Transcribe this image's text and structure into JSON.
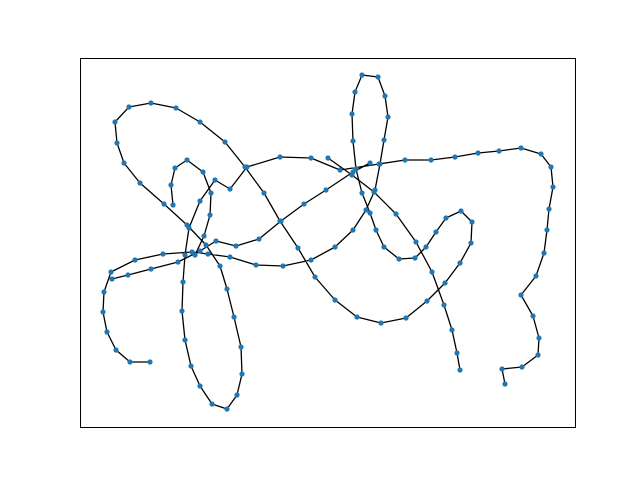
{
  "chart_data": {
    "type": "line",
    "title": "",
    "xlabel": "",
    "ylabel": "",
    "xticks": [],
    "yticks": [],
    "grid": false,
    "legend": false,
    "series": [
      {
        "line_color": "#000000",
        "marker": "circle",
        "marker_color": "#1f77b4",
        "points": [
          [
            150,
            362
          ],
          [
            130,
            362
          ],
          [
            116,
            350
          ],
          [
            107,
            332
          ],
          [
            103,
            312
          ],
          [
            104,
            292
          ],
          [
            111,
            272
          ],
          [
            135,
            260
          ],
          [
            163,
            254
          ],
          [
            192,
            252
          ],
          [
            208,
            254
          ],
          [
            230,
            257
          ],
          [
            256,
            265
          ],
          [
            283,
            266
          ],
          [
            311,
            260
          ],
          [
            335,
            247
          ],
          [
            353,
            230
          ],
          [
            366,
            210
          ],
          [
            375,
            190
          ],
          [
            380,
            164
          ],
          [
            384,
            140
          ],
          [
            388,
            117
          ],
          [
            385,
            96
          ],
          [
            378,
            77
          ],
          [
            362,
            75
          ],
          [
            355,
            92
          ],
          [
            352,
            114
          ],
          [
            353,
            141
          ],
          [
            356,
            169
          ],
          [
            362,
            193
          ],
          [
            370,
            213
          ],
          [
            376,
            230
          ],
          [
            384,
            247
          ],
          [
            399,
            259
          ],
          [
            415,
            258
          ],
          [
            426,
            247
          ],
          [
            436,
            232
          ],
          [
            446,
            218
          ],
          [
            461,
            211
          ],
          [
            472,
            222
          ],
          [
            471,
            243
          ],
          [
            460,
            263
          ],
          [
            445,
            283
          ],
          [
            427,
            301
          ],
          [
            406,
            318
          ],
          [
            381,
            323
          ],
          [
            357,
            317
          ],
          [
            335,
            300
          ],
          [
            315,
            277
          ],
          [
            298,
            248
          ],
          [
            280,
            221
          ],
          [
            264,
            193
          ],
          [
            245,
            167
          ],
          [
            225,
            142
          ],
          [
            200,
            122
          ],
          [
            176,
            108
          ],
          [
            151,
            103
          ],
          [
            129,
            107
          ],
          [
            115,
            122
          ],
          [
            117,
            143
          ],
          [
            124,
            163
          ],
          [
            140,
            183
          ],
          [
            164,
            204
          ],
          [
            187,
            225
          ],
          [
            206,
            245
          ],
          [
            220,
            266
          ],
          [
            227,
            289
          ],
          [
            234,
            317
          ],
          [
            241,
            347
          ],
          [
            242,
            374
          ],
          [
            237,
            395
          ],
          [
            227,
            409
          ],
          [
            212,
            404
          ],
          [
            200,
            386
          ],
          [
            191,
            366
          ],
          [
            185,
            340
          ],
          [
            182,
            311
          ],
          [
            183,
            282
          ],
          [
            185,
            255
          ],
          [
            189,
            228
          ],
          [
            200,
            201
          ],
          [
            215,
            180
          ],
          [
            230,
            189
          ],
          [
            247,
            167
          ],
          [
            280,
            157
          ],
          [
            311,
            158
          ],
          [
            340,
            170
          ],
          [
            379,
            164
          ],
          [
            405,
            160
          ],
          [
            431,
            160
          ],
          [
            455,
            157
          ],
          [
            478,
            153
          ],
          [
            499,
            151
          ],
          [
            521,
            148
          ],
          [
            541,
            154
          ],
          [
            551,
            167
          ],
          [
            553,
            187
          ],
          [
            549,
            209
          ],
          [
            547,
            230
          ],
          [
            544,
            253
          ],
          [
            536,
            276
          ],
          [
            521,
            295
          ],
          [
            533,
            316
          ],
          [
            539,
            338
          ],
          [
            538,
            355
          ],
          [
            522,
            367
          ],
          [
            502,
            369
          ],
          [
            505,
            384
          ]
        ]
      },
      {
        "line_color": "#000000",
        "marker": "circle",
        "marker_color": "#1f77b4",
        "points": [
          [
            460,
            370
          ],
          [
            457,
            353
          ],
          [
            452,
            330
          ],
          [
            444,
            305
          ],
          [
            432,
            272
          ],
          [
            416,
            242
          ],
          [
            396,
            214
          ],
          [
            374,
            192
          ],
          [
            352,
            175
          ],
          [
            328,
            158
          ]
        ]
      },
      {
        "line_color": "#000000",
        "marker": "circle",
        "marker_color": "#1f77b4",
        "points": [
          [
            112,
            279
          ],
          [
            128,
            275
          ],
          [
            151,
            269
          ],
          [
            178,
            262
          ],
          [
            200,
            251
          ],
          [
            216,
            241
          ],
          [
            236,
            246
          ],
          [
            259,
            239
          ],
          [
            281,
            221
          ],
          [
            304,
            204
          ],
          [
            326,
            190
          ],
          [
            353,
            172
          ],
          [
            370,
            163
          ]
        ]
      },
      {
        "line_color": "#000000",
        "marker": "circle",
        "marker_color": "#1f77b4",
        "points": [
          [
            173,
            205
          ],
          [
            171,
            185
          ],
          [
            175,
            168
          ],
          [
            187,
            160
          ],
          [
            203,
            172
          ],
          [
            211,
            193
          ],
          [
            210,
            215
          ],
          [
            204,
            236
          ],
          [
            195,
            255
          ]
        ]
      }
    ]
  }
}
